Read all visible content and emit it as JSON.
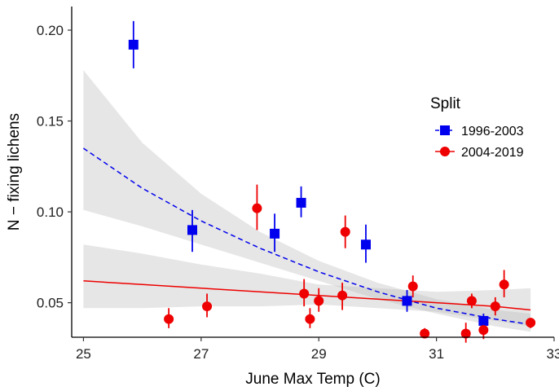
{
  "chart_data": {
    "type": "scatter",
    "xlabel": "June Max Temp (C)",
    "ylabel": "N − fixing lichens",
    "xlim": [
      24.8,
      33.0
    ],
    "ylim": [
      0.031,
      0.213
    ],
    "xticks": [
      25,
      27,
      29,
      31,
      33
    ],
    "yticks": [
      0.05,
      0.1,
      0.15,
      0.2
    ],
    "ytick_labels": [
      "0.05",
      "0.10",
      "0.15",
      "0.20"
    ],
    "grid": false,
    "legend": {
      "title": "Split",
      "position": "right"
    },
    "series": [
      {
        "name": "1996-2003",
        "color": "#0000ee",
        "marker": "square",
        "line_style": "dashed",
        "points": [
          {
            "x": 25.85,
            "y": 0.192,
            "lo": 0.179,
            "hi": 0.205
          },
          {
            "x": 26.85,
            "y": 0.09,
            "lo": 0.078,
            "hi": 0.101
          },
          {
            "x": 28.25,
            "y": 0.088,
            "lo": 0.078,
            "hi": 0.099
          },
          {
            "x": 28.7,
            "y": 0.105,
            "lo": 0.097,
            "hi": 0.114
          },
          {
            "x": 29.8,
            "y": 0.082,
            "lo": 0.072,
            "hi": 0.093
          },
          {
            "x": 30.5,
            "y": 0.051,
            "lo": 0.045,
            "hi": 0.057
          },
          {
            "x": 31.8,
            "y": 0.04,
            "lo": 0.036,
            "hi": 0.044
          }
        ],
        "fit": {
          "x": [
            25.0,
            26.0,
            27.0,
            28.0,
            29.0,
            30.0,
            31.0,
            32.0,
            32.6
          ],
          "y": [
            0.135,
            0.113,
            0.095,
            0.08,
            0.067,
            0.056,
            0.047,
            0.041,
            0.038
          ],
          "ci_lo": [
            0.101,
            0.092,
            0.082,
            0.072,
            0.062,
            0.052,
            0.044,
            0.037,
            0.034
          ],
          "ci_hi": [
            0.178,
            0.138,
            0.11,
            0.089,
            0.073,
            0.061,
            0.052,
            0.046,
            0.044
          ]
        }
      },
      {
        "name": "2004-2019",
        "color": "#ee0000",
        "marker": "circle",
        "line_style": "solid",
        "points": [
          {
            "x": 26.45,
            "y": 0.041,
            "lo": 0.036,
            "hi": 0.047
          },
          {
            "x": 27.1,
            "y": 0.048,
            "lo": 0.042,
            "hi": 0.055
          },
          {
            "x": 27.95,
            "y": 0.102,
            "lo": 0.09,
            "hi": 0.115
          },
          {
            "x": 28.75,
            "y": 0.055,
            "lo": 0.048,
            "hi": 0.063
          },
          {
            "x": 28.85,
            "y": 0.041,
            "lo": 0.036,
            "hi": 0.047
          },
          {
            "x": 29.0,
            "y": 0.051,
            "lo": 0.045,
            "hi": 0.058
          },
          {
            "x": 29.4,
            "y": 0.054,
            "lo": 0.046,
            "hi": 0.061
          },
          {
            "x": 29.45,
            "y": 0.089,
            "lo": 0.08,
            "hi": 0.098
          },
          {
            "x": 30.6,
            "y": 0.059,
            "lo": 0.053,
            "hi": 0.065
          },
          {
            "x": 30.8,
            "y": 0.033,
            "lo": 0.031,
            "hi": 0.036
          },
          {
            "x": 31.5,
            "y": 0.033,
            "lo": 0.028,
            "hi": 0.039
          },
          {
            "x": 31.6,
            "y": 0.051,
            "lo": 0.047,
            "hi": 0.055
          },
          {
            "x": 31.8,
            "y": 0.035,
            "lo": 0.03,
            "hi": 0.04
          },
          {
            "x": 32.0,
            "y": 0.048,
            "lo": 0.043,
            "hi": 0.053
          },
          {
            "x": 32.15,
            "y": 0.06,
            "lo": 0.053,
            "hi": 0.068
          },
          {
            "x": 32.6,
            "y": 0.039,
            "lo": 0.036,
            "hi": 0.041
          }
        ],
        "fit": {
          "x": [
            25.0,
            26.0,
            27.0,
            28.0,
            29.0,
            30.0,
            31.0,
            32.0,
            32.6
          ],
          "y": [
            0.062,
            0.06,
            0.058,
            0.056,
            0.054,
            0.052,
            0.05,
            0.048,
            0.046
          ],
          "ci_lo": [
            0.047,
            0.047,
            0.048,
            0.048,
            0.049,
            0.047,
            0.045,
            0.04,
            0.037
          ],
          "ci_hi": [
            0.082,
            0.077,
            0.071,
            0.066,
            0.06,
            0.058,
            0.056,
            0.057,
            0.058
          ]
        }
      }
    ]
  }
}
